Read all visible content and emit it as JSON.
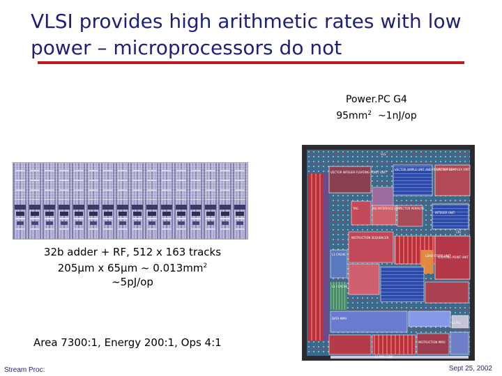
{
  "slide": {
    "title_line1": "VLSI provides high arithmetic rates with low",
    "title_line2": "power – microprocessors do not",
    "colors": {
      "title": "#1f1f7a",
      "rule": "#c0181c"
    }
  },
  "chip": {
    "name": "Power.PC G4",
    "area_prefix": "95mm",
    "area_sup": "2",
    "energy": "~1nJ/op",
    "die_labels": [
      "VLS",
      "VECTOR INTEGER FLOATING POINT UNIT",
      "VECTOR SIMPLE UNIT AND REGISTER FILE",
      "VECTOR COMPLEX UNIT",
      "TAG",
      "BIU INTERFACE UNIT",
      "VECTOR PERMUTE",
      "INTEGER UNIT",
      "CRI",
      "INSTRUCTION SEQUENCER",
      "L1 CACHE",
      "L1 I CACHE",
      "LOAD STORE UNIT",
      "FLOATING POINT UNIT",
      "DATA MMU",
      "INSTRUCTION MMU",
      "L1 PLL",
      "L1 PMU SIDE"
    ]
  },
  "adder": {
    "line1": "32b adder + RF, 512 x 163 tracks",
    "line2": "205μm x 65μm ~ 0.013mm",
    "line2_sup": "2",
    "line3": "~5pJ/op"
  },
  "summary": "Area 7300:1, Energy 200:1, Ops 4:1",
  "footer": {
    "left": "Stream Proc:",
    "right": "Sept 25, 2002"
  }
}
